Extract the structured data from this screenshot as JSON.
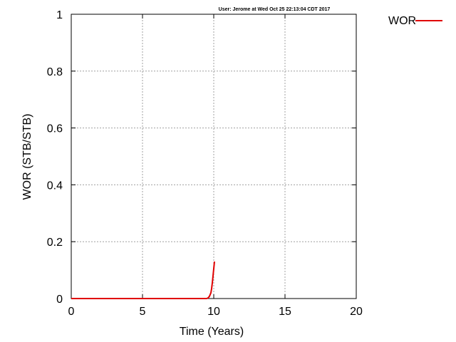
{
  "stamp": "User: Jerome at Wed Oct 25 22:13:04 CDT 2017",
  "chart_data": {
    "type": "line",
    "title": "",
    "xlabel": "Time (Years)",
    "ylabel": "WOR (STB/STB)",
    "xlim": [
      0,
      20
    ],
    "ylim": [
      0,
      1
    ],
    "xticks": [
      0,
      5,
      10,
      15,
      20
    ],
    "yticks": [
      0,
      0.2,
      0.4,
      0.6,
      0.8,
      1
    ],
    "ytick_labels": [
      "0",
      "0.2",
      "0.4",
      "0.6",
      "0.8",
      "1"
    ],
    "grid": true,
    "legend_position": "top-right outside",
    "series": [
      {
        "name": "WOR",
        "color": "#e00000",
        "x": [
          0,
          2,
          4,
          6,
          8,
          9,
          9.5,
          9.6,
          9.7,
          9.8,
          9.85,
          9.9,
          9.95,
          10.0,
          10.05
        ],
        "y": [
          0,
          0,
          0,
          0,
          0,
          0,
          0.0,
          0.002,
          0.008,
          0.02,
          0.035,
          0.055,
          0.08,
          0.105,
          0.13
        ]
      }
    ]
  }
}
